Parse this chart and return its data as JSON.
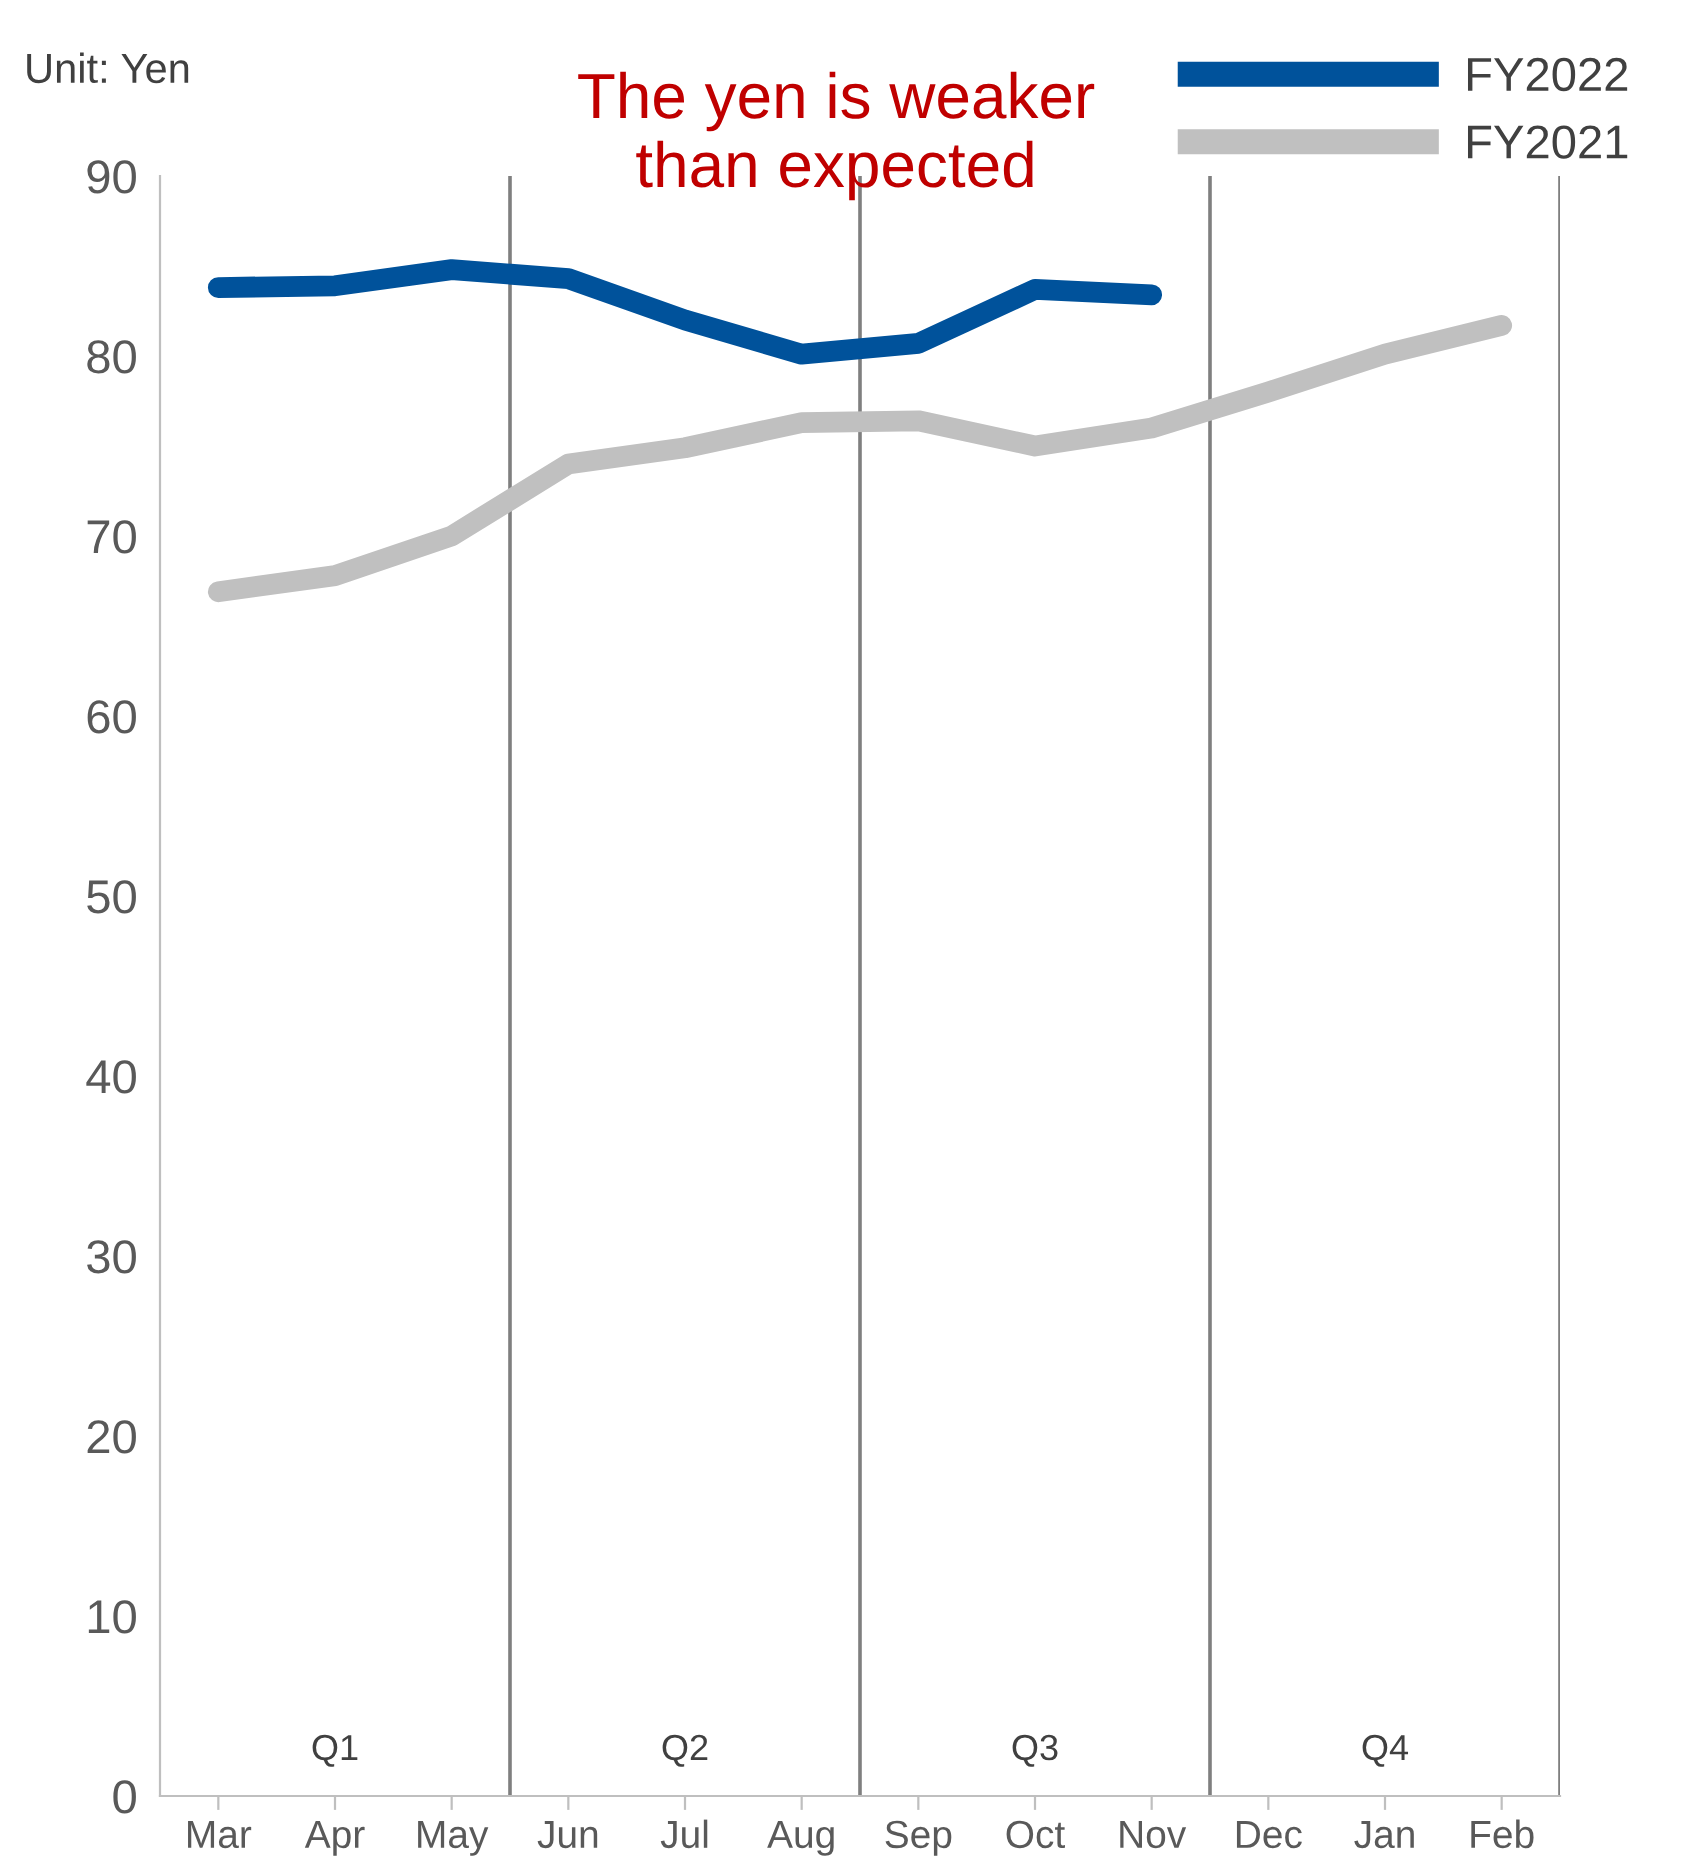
{
  "chart_data": {
    "type": "line",
    "ylabel": "Unit: Yen",
    "categories": [
      "Mar",
      "Apr",
      "May",
      "Jun",
      "Jul",
      "Aug",
      "Sep",
      "Oct",
      "Nov",
      "Dec",
      "Jan",
      "Feb"
    ],
    "series": [
      {
        "name": "FY2022",
        "color": "#00529b",
        "values": [
          83.8,
          83.9,
          84.8,
          84.3,
          82.0,
          80.1,
          80.7,
          83.7,
          83.4,
          null,
          null,
          null
        ]
      },
      {
        "name": "FY2021",
        "color": "#c0c0c0",
        "values": [
          66.9,
          67.8,
          70.0,
          74.0,
          74.9,
          76.3,
          76.4,
          75.0,
          76.0,
          78.0,
          80.1,
          81.7
        ]
      }
    ],
    "ylim": [
      0,
      90
    ],
    "yticks": [
      0,
      10,
      20,
      30,
      40,
      50,
      60,
      70,
      80,
      90
    ],
    "annotations": [
      "The yen is weaker\nthan expected",
      "Q1",
      "Q2",
      "Q3",
      "Q4"
    ],
    "legend": "top right",
    "grid": false,
    "marker": "none",
    "line_style": "solid"
  }
}
